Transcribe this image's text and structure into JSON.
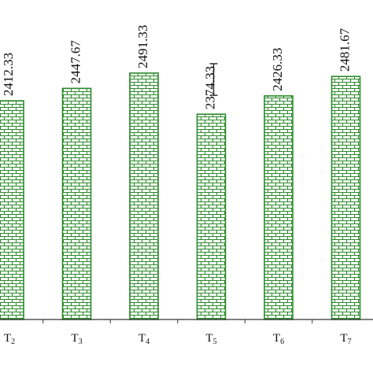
{
  "chart_data": {
    "type": "bar",
    "categories": [
      {
        "base": "T",
        "sub": "2"
      },
      {
        "base": "T",
        "sub": "3"
      },
      {
        "base": "T",
        "sub": "4"
      },
      {
        "base": "T",
        "sub": "5"
      },
      {
        "base": "T",
        "sub": "6"
      },
      {
        "base": "T",
        "sub": "7"
      }
    ],
    "values": [
      2412.33,
      2447.67,
      2491.33,
      2374.33,
      2426.33,
      2481.67
    ],
    "data_labels": [
      "2412.33",
      "2447.67",
      "2491.33",
      "2374.33",
      "2426.33",
      "2481.67"
    ],
    "error_bar": {
      "category_index": 3,
      "low": 2428,
      "high": 2518
    },
    "ylim": [
      1790,
      2650
    ],
    "title": "",
    "xlabel": "",
    "ylabel": "",
    "grid": false,
    "bar_style": "brick-pattern",
    "colors": {
      "bar_stroke": "#2a8a2a",
      "brick_line": "#2a8a2a",
      "bar_fill": "#ffffff",
      "axis": "#333333"
    }
  }
}
